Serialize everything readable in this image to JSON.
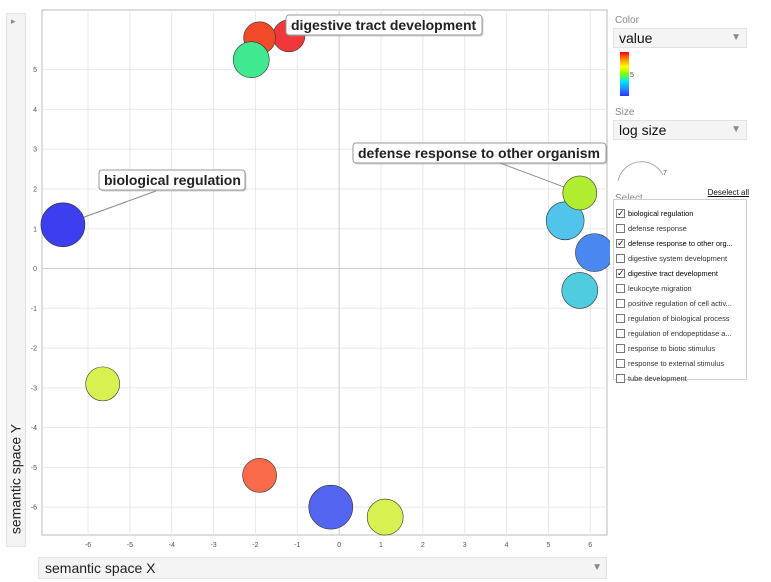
{
  "y_axis_selector": {
    "collapse_glyph": "▸",
    "label": "semantic space Y"
  },
  "x_axis_selector": {
    "label": "semantic space X",
    "arrow": "▼"
  },
  "panel": {
    "color_label": "Color",
    "color_value": "value",
    "color_scale_tick": "5",
    "size_label": "Size",
    "size_value": "log size",
    "size_scale_tick": "7",
    "dropdown_arrow": "▼",
    "select_label": "Select",
    "deselect_all": "Deselect all",
    "items": [
      {
        "label": "biological regulation",
        "checked": true
      },
      {
        "label": "defense response",
        "checked": false
      },
      {
        "label": "defense response to other org...",
        "checked": true
      },
      {
        "label": "digestive system development",
        "checked": false
      },
      {
        "label": "digestive tract development",
        "checked": true
      },
      {
        "label": "leukocyte migration",
        "checked": false
      },
      {
        "label": "positive regulation of cell activ...",
        "checked": false
      },
      {
        "label": "regulation of biological process",
        "checked": false
      },
      {
        "label": "regulation of endopeptidase a...",
        "checked": false
      },
      {
        "label": "response to biotic stimulus",
        "checked": false
      },
      {
        "label": "response to external stimulus",
        "checked": false
      },
      {
        "label": "tube development",
        "checked": false
      }
    ]
  },
  "chart_data": {
    "type": "scatter",
    "xlim": [
      -7.1,
      6.4
    ],
    "ylim": [
      -6.7,
      6.5
    ],
    "x_ticks": [
      -6,
      -5,
      -4,
      -3,
      -2,
      -1,
      0,
      1,
      2,
      3,
      4,
      5,
      6
    ],
    "y_ticks": [
      -6,
      -5,
      -4,
      -3,
      -2,
      -1,
      0,
      1,
      2,
      3,
      4,
      5
    ],
    "grid": true,
    "points": [
      {
        "x": -1.2,
        "y": 5.85,
        "r": 16,
        "color": "#f0383a"
      },
      {
        "x": -1.9,
        "y": 5.8,
        "r": 16,
        "color": "#f04a28"
      },
      {
        "x": -2.1,
        "y": 5.25,
        "r": 18,
        "color": "#40e890"
      },
      {
        "x": -6.6,
        "y": 1.1,
        "r": 22,
        "color": "#3c3ef0"
      },
      {
        "x": 5.4,
        "y": 1.2,
        "r": 19,
        "color": "#50c4ea"
      },
      {
        "x": 6.1,
        "y": 0.4,
        "r": 19,
        "color": "#4a88f0"
      },
      {
        "x": 5.75,
        "y": 1.9,
        "r": 17,
        "color": "#b0ec30"
      },
      {
        "x": 5.75,
        "y": -0.55,
        "r": 18,
        "color": "#50cce0"
      },
      {
        "x": -5.65,
        "y": -2.9,
        "r": 17,
        "color": "#d8f050"
      },
      {
        "x": -1.9,
        "y": -5.2,
        "r": 17,
        "color": "#f86a4a"
      },
      {
        "x": -0.2,
        "y": -6.0,
        "r": 22,
        "color": "#5466f0"
      },
      {
        "x": 1.1,
        "y": -6.25,
        "r": 18,
        "color": "#d8f050"
      }
    ],
    "annotations": [
      {
        "text": "digestive tract development",
        "x": -1.9,
        "y": 5.8
      },
      {
        "text": "defense response to other organism",
        "x": 5.75,
        "y": 1.9
      },
      {
        "text": "biological regulation",
        "x": -6.6,
        "y": 1.1
      }
    ]
  }
}
